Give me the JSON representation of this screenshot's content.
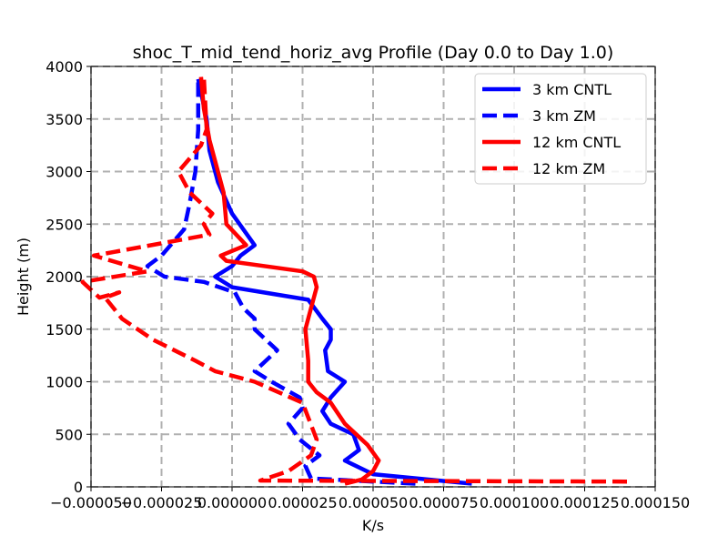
{
  "chart_data": {
    "type": "line",
    "title": "shoc_T_mid_tend_horiz_avg Profile (Day 0.0 to Day 1.0)",
    "xlabel": "K/s",
    "ylabel": "Height (m)",
    "xlim": [
      -5e-05,
      0.00015
    ],
    "ylim": [
      0,
      4000
    ],
    "xticks": [
      -5e-05,
      -2.5e-05,
      0.0,
      2.5e-05,
      5e-05,
      7.5e-05,
      0.0001,
      0.000125,
      0.00015
    ],
    "xtick_labels": [
      "−0.000050",
      "−0.000025",
      "0.000000",
      "0.000025",
      "0.000050",
      "0.000075",
      "0.000100",
      "0.000125",
      "0.000150"
    ],
    "yticks": [
      0,
      500,
      1000,
      1500,
      2000,
      2500,
      3000,
      3500,
      4000
    ],
    "ytick_labels": [
      "0",
      "500",
      "1000",
      "1500",
      "2000",
      "2500",
      "3000",
      "3500",
      "4000"
    ],
    "grid": true,
    "legend_position": "top-right",
    "series": [
      {
        "name": "3 km CNTL",
        "color": "#0000ff",
        "style": "solid",
        "x": [
          8.5e-05,
          5e-05,
          4e-05,
          4.5e-05,
          4.3e-05,
          3.5e-05,
          3.2e-05,
          3.5e-05,
          4e-05,
          3.4e-05,
          3.3e-05,
          3.5e-05,
          3.5e-05,
          3.2e-05,
          2.7e-05,
          0.0,
          -6e-06,
          0.0,
          3e-06,
          8e-06,
          0.0,
          -5e-06,
          -8e-06,
          -9e-06,
          -1.2e-05
        ],
        "y": [
          30,
          120,
          250,
          350,
          500,
          600,
          720,
          850,
          1000,
          1100,
          1300,
          1400,
          1500,
          1600,
          1780,
          1900,
          2000,
          2100,
          2200,
          2300,
          2600,
          2900,
          3200,
          3500,
          3880
        ]
      },
      {
        "name": "3 km ZM",
        "color": "#0000ff",
        "style": "dashed",
        "x": [
          6.5e-05,
          2.8e-05,
          2.6e-05,
          3.1e-05,
          2.4e-05,
          2e-05,
          2.5e-05,
          2.4e-05,
          1.4e-05,
          8e-06,
          1.6e-05,
          8e-06,
          8e-06,
          4e-06,
          1e-06,
          -1e-05,
          -2.4e-05,
          -3e-05,
          -2.5e-05,
          -1.7e-05,
          -1.5e-05,
          -1.3e-05,
          -1.2e-05,
          -1.2e-05
        ],
        "y": [
          30,
          80,
          200,
          300,
          450,
          600,
          750,
          850,
          1000,
          1100,
          1300,
          1500,
          1600,
          1700,
          1850,
          1950,
          2000,
          2100,
          2200,
          2450,
          2700,
          3000,
          3400,
          3880
        ]
      },
      {
        "name": "12 km CNTL",
        "color": "#ff0000",
        "style": "solid",
        "x": [
          4e-05,
          4.6e-05,
          5e-05,
          5.2e-05,
          4.8e-05,
          4e-05,
          3.5e-05,
          3e-05,
          2.7e-05,
          2.7e-05,
          2.6e-05,
          2.8e-05,
          3e-05,
          2.9e-05,
          2.5e-05,
          -2e-06,
          -4e-06,
          5e-06,
          -2e-06,
          -3e-06,
          -5e-06,
          -8e-06,
          -1e-05,
          -1.1e-05
        ],
        "y": [
          30,
          70,
          150,
          250,
          400,
          600,
          800,
          900,
          1000,
          1200,
          1500,
          1700,
          1900,
          2000,
          2050,
          2150,
          2200,
          2300,
          2500,
          2800,
          3000,
          3300,
          3600,
          3900
        ]
      },
      {
        "name": "12 km ZM",
        "color": "#ff0000",
        "style": "dashed",
        "x": [
          0.00014,
          1e-05,
          2e-05,
          2.8e-05,
          3e-05,
          2.5e-05,
          8e-06,
          -6e-06,
          -1.3e-05,
          -2.8e-05,
          -3.9e-05,
          -4.5e-05,
          -4e-05,
          -4.7e-05,
          -5.3e-05,
          -3e-05,
          -4.9e-05,
          -8e-06,
          -1e-05,
          -7e-06,
          -1.5e-05,
          -1.9e-05,
          -1.1e-05,
          -9e-06,
          -1e-05
        ],
        "y": [
          50,
          60,
          150,
          300,
          450,
          800,
          1000,
          1100,
          1200,
          1400,
          1600,
          1800,
          1850,
          1800,
          1950,
          2050,
          2200,
          2400,
          2500,
          2600,
          2800,
          3000,
          3250,
          3400,
          3900
        ]
      }
    ]
  }
}
